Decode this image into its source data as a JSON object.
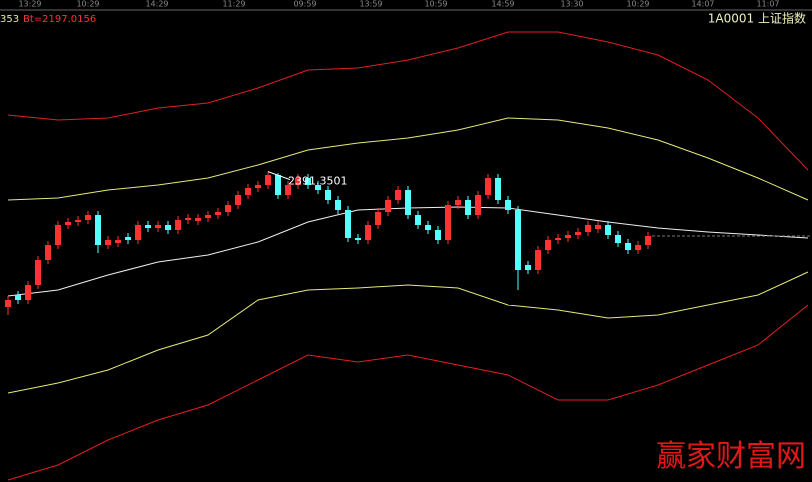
{
  "chart_data": {
    "type": "candlestick",
    "title": "1A0001 上证指数",
    "subtitle": "Bt=2197.0156",
    "corner_label": "353",
    "annotation": "赢家财富网",
    "time_labels": [
      "13:29",
      "10:29",
      "14:29",
      "11:29",
      "09:59",
      "13:59",
      "10:59",
      "14:59",
      "13:30",
      "10:29",
      "14:07",
      "11:07"
    ],
    "ylim": [
      2081,
      2563
    ],
    "xlim": [
      0,
      80
    ],
    "up_color": "#ff3232",
    "down_color": "#54ffff",
    "candles": {
      "open": [
        2256,
        2268,
        2263,
        2278,
        2303,
        2318,
        2338,
        2341,
        2343,
        2348,
        2318,
        2320,
        2326,
        2323,
        2338,
        2335,
        2338,
        2333,
        2343,
        2342,
        2345,
        2348,
        2351,
        2358,
        2368,
        2375,
        2378,
        2388,
        2368,
        2378,
        2385,
        2378,
        2373,
        2363,
        2353,
        2325,
        2323,
        2338,
        2351,
        2363,
        2373,
        2348,
        2338,
        2333,
        2323,
        2358,
        2363,
        2348,
        2368,
        2385,
        2363,
        2353,
        2298,
        2293,
        2313,
        2323,
        2325,
        2328,
        2331,
        2334,
        2338,
        2328,
        2320,
        2313,
        2318
      ],
      "high": [
        2267,
        2272,
        2282,
        2307,
        2322,
        2342,
        2345,
        2347,
        2352,
        2352,
        2327,
        2327,
        2330,
        2342,
        2342,
        2342,
        2342,
        2347,
        2349,
        2349,
        2352,
        2355,
        2362,
        2372,
        2379,
        2382,
        2391.3501,
        2390,
        2382,
        2389,
        2389,
        2382,
        2377,
        2367,
        2357,
        2329,
        2342,
        2355,
        2367,
        2377,
        2377,
        2352,
        2342,
        2337,
        2362,
        2367,
        2367,
        2372,
        2389,
        2389,
        2367,
        2357,
        2302,
        2317,
        2327,
        2329,
        2332,
        2335,
        2342,
        2342,
        2342,
        2332,
        2324,
        2322,
        2331
      ],
      "low": [
        2248,
        2259,
        2259,
        2274,
        2299,
        2314,
        2334,
        2337,
        2339,
        2310,
        2314,
        2316,
        2319,
        2319,
        2331,
        2331,
        2329,
        2329,
        2339,
        2338,
        2341,
        2344,
        2347,
        2354,
        2364,
        2371,
        2374,
        2364,
        2364,
        2374,
        2374,
        2369,
        2359,
        2349,
        2321,
        2319,
        2319,
        2334,
        2347,
        2359,
        2344,
        2334,
        2329,
        2319,
        2319,
        2354,
        2344,
        2344,
        2364,
        2359,
        2349,
        2273,
        2289,
        2289,
        2309,
        2319,
        2321,
        2324,
        2327,
        2330,
        2324,
        2316,
        2309,
        2309,
        2314
      ],
      "close": [
        2263,
        2263,
        2278,
        2303,
        2318,
        2338,
        2341,
        2343,
        2348,
        2318,
        2323,
        2323,
        2323,
        2338,
        2335,
        2338,
        2333,
        2343,
        2345,
        2345,
        2348,
        2351,
        2358,
        2368,
        2375,
        2378,
        2388,
        2368,
        2378,
        2385,
        2378,
        2373,
        2363,
        2353,
        2325,
        2323,
        2338,
        2351,
        2363,
        2373,
        2348,
        2338,
        2333,
        2323,
        2358,
        2363,
        2348,
        2368,
        2385,
        2363,
        2353,
        2293,
        2293,
        2313,
        2323,
        2325,
        2328,
        2331,
        2338,
        2338,
        2328,
        2320,
        2313,
        2318,
        2327
      ]
    },
    "bands": {
      "x": [
        0,
        5,
        10,
        15,
        20,
        25,
        30,
        35,
        40,
        45,
        50,
        55,
        60,
        65,
        70,
        75,
        80
      ],
      "series": [
        {
          "color": "#e02020",
          "values": [
            2448,
            2443,
            2445,
            2455,
            2460,
            2475,
            2493,
            2495,
            2503,
            2515,
            2531,
            2531,
            2521,
            2508,
            2483,
            2445,
            2393
          ]
        },
        {
          "color": "#e8e87a",
          "values": [
            2363,
            2365,
            2373,
            2378,
            2385,
            2398,
            2413,
            2420,
            2425,
            2433,
            2445,
            2443,
            2435,
            2423,
            2405,
            2385,
            2363
          ]
        },
        {
          "color": "#f0f0f0",
          "values": [
            2267,
            2273,
            2288,
            2301,
            2308,
            2321,
            2341,
            2353,
            2355,
            2356,
            2355,
            2348,
            2341,
            2335,
            2331,
            2328,
            2325
          ]
        },
        {
          "color": "#e8e87a",
          "values": [
            2170,
            2180,
            2193,
            2213,
            2228,
            2263,
            2273,
            2275,
            2278,
            2275,
            2258,
            2253,
            2245,
            2248,
            2258,
            2268,
            2291
          ]
        },
        {
          "color": "#e02020",
          "values": [
            2083,
            2098,
            2123,
            2143,
            2158,
            2183,
            2208,
            2201,
            2208,
            2198,
            2188,
            2163,
            2163,
            2178,
            2198,
            2218,
            2258
          ]
        }
      ]
    }
  }
}
